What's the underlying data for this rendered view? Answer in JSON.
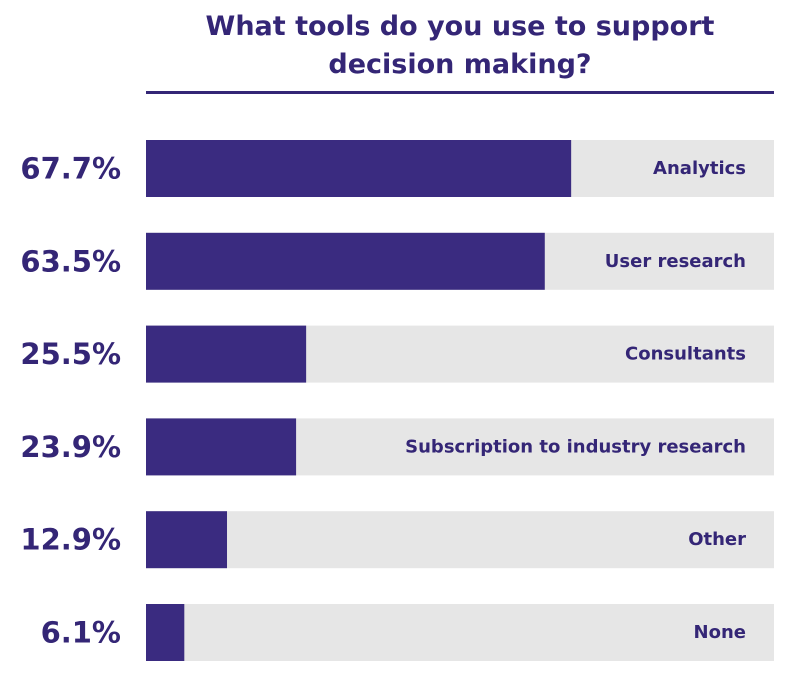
{
  "chart_data": {
    "type": "bar",
    "orientation": "horizontal",
    "title": "What tools do you use to support decision making?",
    "categories": [
      "Analytics",
      "User research",
      "Consultants",
      "Subscription to industry research",
      "Other",
      "None"
    ],
    "values": [
      67.7,
      63.5,
      25.5,
      23.9,
      12.9,
      6.1
    ],
    "value_labels": [
      "67.7%",
      "63.5%",
      "25.5%",
      "23.9%",
      "12.9%",
      "6.1%"
    ],
    "xlim": [
      0,
      100
    ],
    "grid": false,
    "legend": "none"
  },
  "colors": {
    "bar": "#3a2b80",
    "track": "#e6e6e6",
    "text": "#342676"
  }
}
